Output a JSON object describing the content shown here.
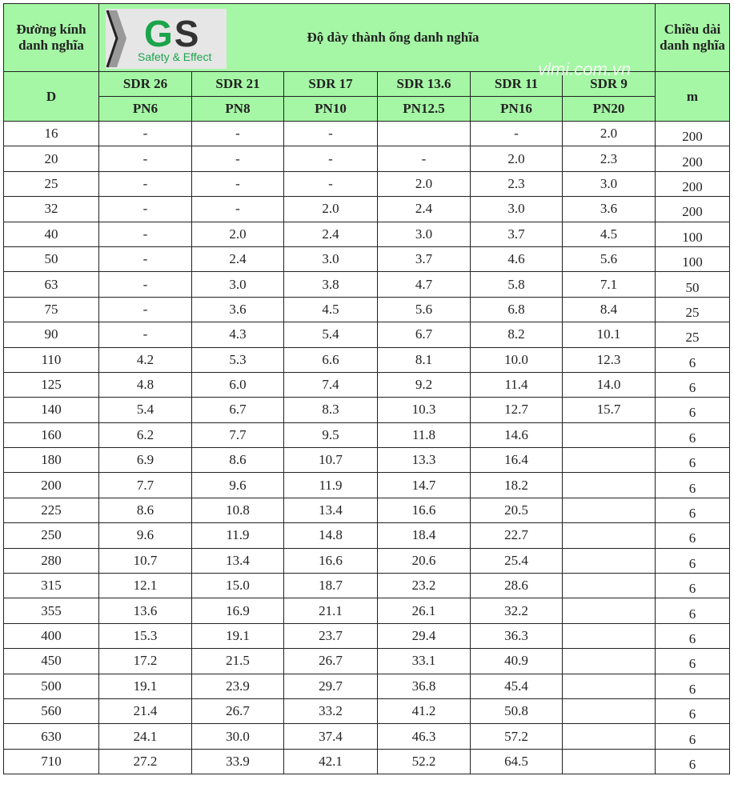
{
  "header": {
    "diameter": "Đường kính danh nghĩa",
    "thickness": "Độ dày thành ống danh nghĩa",
    "length": "Chiều dài danh nghĩa",
    "d": "D",
    "m": "m",
    "sdr": [
      "SDR 26",
      "SDR 21",
      "SDR 17",
      "SDR 13.6",
      "SDR 11",
      "SDR 9"
    ],
    "pn": [
      "PN6",
      "PN8",
      "PN10",
      "PN12.5",
      "PN16",
      "PN20"
    ]
  },
  "logo": {
    "text_g": "G",
    "text_s": "S",
    "tagline": "Safety & Effect"
  },
  "watermark": "vlmi.com.vn",
  "rows": [
    [
      "16",
      "-",
      "-",
      "-",
      "",
      "-",
      "2.0",
      "200"
    ],
    [
      "20",
      "-",
      "-",
      "-",
      "-",
      "2.0",
      "2.3",
      "200"
    ],
    [
      "25",
      "-",
      "-",
      "-",
      "2.0",
      "2.3",
      "3.0",
      "200"
    ],
    [
      "32",
      "-",
      "-",
      "2.0",
      "2.4",
      "3.0",
      "3.6",
      "200"
    ],
    [
      "40",
      "-",
      "2.0",
      "2.4",
      "3.0",
      "3.7",
      "4.5",
      "100"
    ],
    [
      "50",
      "-",
      "2.4",
      "3.0",
      "3.7",
      "4.6",
      "5.6",
      "100"
    ],
    [
      "63",
      "-",
      "3.0",
      "3.8",
      "4.7",
      "5.8",
      "7.1",
      "50"
    ],
    [
      "75",
      "-",
      "3.6",
      "4.5",
      "5.6",
      "6.8",
      "8.4",
      "25"
    ],
    [
      "90",
      "-",
      "4.3",
      "5.4",
      "6.7",
      "8.2",
      "10.1",
      "25"
    ],
    [
      "110",
      "4.2",
      "5.3",
      "6.6",
      "8.1",
      "10.0",
      "12.3",
      "6"
    ],
    [
      "125",
      "4.8",
      "6.0",
      "7.4",
      "9.2",
      "11.4",
      "14.0",
      "6"
    ],
    [
      "140",
      "5.4",
      "6.7",
      "8.3",
      "10.3",
      "12.7",
      "15.7",
      "6"
    ],
    [
      "160",
      "6.2",
      "7.7",
      "9.5",
      "11.8",
      "14.6",
      "",
      "6"
    ],
    [
      "180",
      "6.9",
      "8.6",
      "10.7",
      "13.3",
      "16.4",
      "",
      "6"
    ],
    [
      "200",
      "7.7",
      "9.6",
      "11.9",
      "14.7",
      "18.2",
      "",
      "6"
    ],
    [
      "225",
      "8.6",
      "10.8",
      "13.4",
      "16.6",
      "20.5",
      "",
      "6"
    ],
    [
      "250",
      "9.6",
      "11.9",
      "14.8",
      "18.4",
      "22.7",
      "",
      "6"
    ],
    [
      "280",
      "10.7",
      "13.4",
      "16.6",
      "20.6",
      "25.4",
      "",
      "6"
    ],
    [
      "315",
      "12.1",
      "15.0",
      "18.7",
      "23.2",
      "28.6",
      "",
      "6"
    ],
    [
      "355",
      "13.6",
      "16.9",
      "21.1",
      "26.1",
      "32.2",
      "",
      "6"
    ],
    [
      "400",
      "15.3",
      "19.1",
      "23.7",
      "29.4",
      "36.3",
      "",
      "6"
    ],
    [
      "450",
      "17.2",
      "21.5",
      "26.7",
      "33.1",
      "40.9",
      "",
      "6"
    ],
    [
      "500",
      "19.1",
      "23.9",
      "29.7",
      "36.8",
      "45.4",
      "",
      "6"
    ],
    [
      "560",
      "21.4",
      "26.7",
      "33.2",
      "41.2",
      "50.8",
      "",
      "6"
    ],
    [
      "630",
      "24.1",
      "30.0",
      "37.4",
      "46.3",
      "57.2",
      "",
      "6"
    ],
    [
      "710",
      "27.2",
      "33.9",
      "42.1",
      "52.2",
      "64.5",
      "",
      "6"
    ]
  ]
}
